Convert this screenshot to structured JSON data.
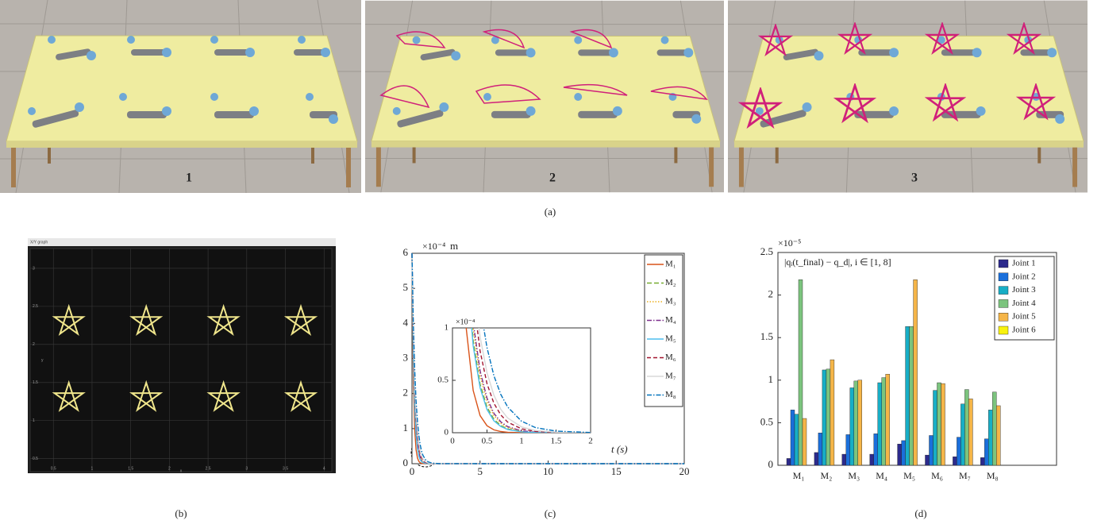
{
  "panel_a_labels": [
    "1",
    "2",
    "3"
  ],
  "captions": [
    "(a)",
    "(b)",
    "(c)",
    "(d)"
  ],
  "chart_data": [
    {
      "type": "xy-graph",
      "tab": "X/Y graph",
      "xlabel": "x",
      "ylabel": "y",
      "x": [
        0.7,
        1.7,
        2.7,
        3.7,
        0.7,
        1.7,
        2.7,
        3.7
      ],
      "values": [
        2.3,
        2.3,
        2.3,
        2.3,
        1.3,
        1.3,
        1.3,
        1.3
      ],
      "color": "#f0e68c",
      "xlim": [
        0.2,
        4.1
      ],
      "ylim": [
        0.33,
        3.26
      ],
      "xticks": [
        0.5,
        1,
        1.5,
        2,
        2.5,
        3,
        3.5,
        4
      ],
      "yticks": [
        0.5,
        1,
        1.5,
        2,
        2.5,
        3
      ],
      "grid": true
    },
    {
      "type": "line",
      "ylabel": "m",
      "y_exponent": "×10⁻⁴",
      "xlabel": "t (s)",
      "x": [
        0,
        0.1,
        0.2,
        0.3,
        0.4,
        0.5,
        0.6,
        0.7,
        0.8,
        1,
        1.2,
        1.5,
        2,
        5,
        10,
        15,
        20
      ],
      "xlim": [
        0,
        20
      ],
      "ylim": [
        0,
        6
      ],
      "xticks": [
        0,
        5,
        10,
        15,
        20
      ],
      "yticks": [
        0,
        1,
        2,
        3,
        4,
        5,
        6
      ],
      "legend": "upper right",
      "series": [
        {
          "name": "M₁",
          "color": "#d95319",
          "dash": "none",
          "values": [
            6,
            2.44,
            0.992,
            0.403,
            0.164,
            0.067,
            0.027,
            0.011,
            0.004,
            0.001,
            0,
            0,
            0,
            0,
            0,
            0,
            0
          ]
        },
        {
          "name": "M₂",
          "color": "#77ac30",
          "dash": "6 3",
          "values": [
            6,
            3.16,
            1.668,
            0.88,
            0.464,
            0.245,
            0.129,
            0.068,
            0.036,
            0.01,
            0.003,
            0,
            0,
            0,
            0,
            0,
            0
          ]
        },
        {
          "name": "M₃",
          "color": "#edb120",
          "dash": "1.5 2",
          "values": [
            6,
            3.29,
            1.807,
            0.992,
            0.544,
            0.299,
            0.164,
            0.09,
            0.049,
            0.015,
            0.004,
            0.001,
            0,
            0,
            0,
            0,
            0
          ]
        },
        {
          "name": "M₄",
          "color": "#7e2f8e",
          "dash": "6 2 1.5 2",
          "values": [
            6,
            3.36,
            1.881,
            1.053,
            0.59,
            0.33,
            0.185,
            0.104,
            0.058,
            0.018,
            0.006,
            0.001,
            0,
            0,
            0,
            0,
            0
          ]
        },
        {
          "name": "M₅",
          "color": "#4dbeee",
          "dash": "none",
          "values": [
            6,
            3.1,
            1.603,
            0.828,
            0.428,
            0.221,
            0.114,
            0.059,
            0.031,
            0.008,
            0.002,
            0,
            0,
            0,
            0,
            0,
            0
          ]
        },
        {
          "name": "M₆",
          "color": "#a2142f",
          "dash": "5 3",
          "values": [
            6,
            3.6,
            2.164,
            1.299,
            0.78,
            0.468,
            0.281,
            0.169,
            0.101,
            0.037,
            0.013,
            0.003,
            0,
            0,
            0,
            0,
            0
          ]
        },
        {
          "name": "M₇",
          "color": "#d8d8d8",
          "dash": "none",
          "values": [
            6,
            3.75,
            2.344,
            1.465,
            0.915,
            0.572,
            0.358,
            0.223,
            0.14,
            0.055,
            0.021,
            0.005,
            0.001,
            0,
            0,
            0,
            0
          ]
        },
        {
          "name": "M₈",
          "color": "#0072bd",
          "dash": "6 2 1.5 2",
          "values": [
            6,
            4.02,
            2.696,
            1.807,
            1.211,
            0.812,
            0.544,
            0.365,
            0.245,
            0.11,
            0.049,
            0.015,
            0.002,
            0,
            0,
            0,
            0
          ]
        }
      ],
      "inset": {
        "xlim": [
          0,
          2
        ],
        "ylim": [
          0,
          1
        ],
        "xticks": [
          0,
          0.5,
          1,
          1.5,
          2
        ],
        "yticks": [
          0,
          0.5,
          1
        ],
        "y_exponent": "×10⁻⁴"
      }
    },
    {
      "type": "bar",
      "annotation": "|qᵢ(t_final) − q_d|, i ∈ [1, 8]",
      "y_exponent": "×10⁻⁵",
      "categories": [
        "M₁",
        "M₂",
        "M₃",
        "M₄",
        "M₅",
        "M₆",
        "M₇",
        "M₈"
      ],
      "ylim": [
        0,
        2.5
      ],
      "yticks": [
        0,
        0.5,
        1,
        1.5,
        2,
        2.5
      ],
      "legend": "upper right",
      "series": [
        {
          "name": "Joint 1",
          "color": "#2c2a8c",
          "values": [
            0.08,
            0.15,
            0.13,
            0.13,
            0.25,
            0.12,
            0.1,
            0.09
          ]
        },
        {
          "name": "Joint 2",
          "color": "#1a6fdb",
          "values": [
            0.65,
            0.38,
            0.36,
            0.37,
            0.29,
            0.35,
            0.33,
            0.31
          ]
        },
        {
          "name": "Joint 3",
          "color": "#17aec6",
          "values": [
            0.6,
            1.12,
            0.91,
            0.97,
            1.63,
            0.88,
            0.72,
            0.65
          ]
        },
        {
          "name": "Joint 4",
          "color": "#7cc47e",
          "values": [
            2.18,
            1.13,
            0.99,
            1.03,
            1.63,
            0.97,
            0.89,
            0.86
          ]
        },
        {
          "name": "Joint 5",
          "color": "#f5b548",
          "values": [
            0.55,
            1.24,
            1.0,
            1.07,
            2.18,
            0.96,
            0.78,
            0.7
          ]
        },
        {
          "name": "Joint 6",
          "color": "#f8f20e",
          "values": [
            0,
            0,
            0,
            0,
            0,
            0,
            0,
            0
          ]
        }
      ]
    }
  ]
}
